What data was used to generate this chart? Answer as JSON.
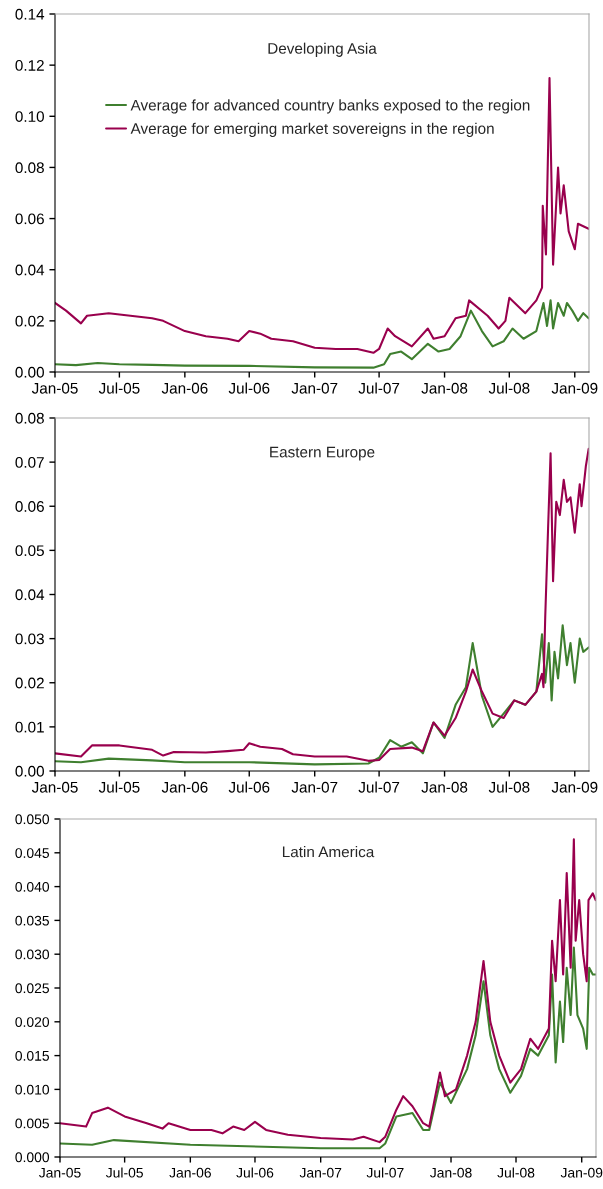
{
  "chart_data": [
    {
      "type": "line",
      "title": "Developing Asia",
      "legend": "top left",
      "grid": false,
      "xlim": [
        "2005-01-01",
        "2009-02-10"
      ],
      "xticks": [
        {
          "value": "2005-01-01",
          "label": "Jan-05"
        },
        {
          "value": "2005-07-01",
          "label": "Jul-05"
        },
        {
          "value": "2006-01-01",
          "label": "Jan-06"
        },
        {
          "value": "2006-07-01",
          "label": "Jul-06"
        },
        {
          "value": "2007-01-01",
          "label": "Jan-07"
        },
        {
          "value": "2007-07-01",
          "label": "Jul-07"
        },
        {
          "value": "2008-01-01",
          "label": "Jan-08"
        },
        {
          "value": "2008-07-01",
          "label": "Jul-08"
        },
        {
          "value": "2009-01-01",
          "label": "Jan-09"
        }
      ],
      "ylim": [
        0,
        0.14
      ],
      "yticks": [
        {
          "value": 0,
          "label": "0.00"
        },
        {
          "value": 0.02,
          "label": "0.02"
        },
        {
          "value": 0.04,
          "label": "0.04"
        },
        {
          "value": 0.06,
          "label": "0.06"
        },
        {
          "value": 0.08,
          "label": "0.08"
        },
        {
          "value": 0.1,
          "label": "0.10"
        },
        {
          "value": 0.12,
          "label": "0.12"
        },
        {
          "value": 0.14,
          "label": "0.14"
        }
      ],
      "series": [
        {
          "name": "Average for advanced country banks exposed to the region",
          "color": "#3f7f2f",
          "x": [
            "2005-01-01",
            "2005-03-01",
            "2005-05-01",
            "2005-07-01",
            "2005-10-01",
            "2006-01-01",
            "2006-07-01",
            "2007-01-01",
            "2007-06-15",
            "2007-07-15",
            "2007-08-01",
            "2007-09-01",
            "2007-10-01",
            "2007-11-15",
            "2007-12-15",
            "2008-01-15",
            "2008-02-15",
            "2008-03-15",
            "2008-04-15",
            "2008-05-15",
            "2008-06-15",
            "2008-07-10",
            "2008-08-10",
            "2008-09-15",
            "2008-10-05",
            "2008-10-15",
            "2008-10-25",
            "2008-11-01",
            "2008-11-15",
            "2008-12-01",
            "2008-12-10",
            "2008-12-25",
            "2009-01-10",
            "2009-01-25",
            "2009-02-09"
          ],
          "values": [
            0.003,
            0.0027,
            0.0035,
            0.003,
            0.0028,
            0.0025,
            0.0024,
            0.0018,
            0.0017,
            0.003,
            0.007,
            0.008,
            0.005,
            0.011,
            0.008,
            0.009,
            0.014,
            0.024,
            0.016,
            0.01,
            0.012,
            0.017,
            0.013,
            0.016,
            0.027,
            0.018,
            0.028,
            0.017,
            0.027,
            0.022,
            0.027,
            0.024,
            0.02,
            0.023,
            0.021
          ]
        },
        {
          "name": "Average for emerging market sovereigns in the region",
          "color": "#99004d",
          "x": [
            "2005-01-01",
            "2005-02-01",
            "2005-03-15",
            "2005-04-01",
            "2005-06-01",
            "2005-08-01",
            "2005-10-01",
            "2005-11-01",
            "2006-01-01",
            "2006-03-01",
            "2006-05-01",
            "2006-06-01",
            "2006-07-01",
            "2006-08-01",
            "2006-09-01",
            "2006-11-01",
            "2007-01-01",
            "2007-03-01",
            "2007-05-01",
            "2007-06-15",
            "2007-07-01",
            "2007-07-25",
            "2007-08-15",
            "2007-10-01",
            "2007-11-15",
            "2007-12-01",
            "2008-01-01",
            "2008-02-01",
            "2008-03-01",
            "2008-03-10",
            "2008-05-01",
            "2008-06-01",
            "2008-06-20",
            "2008-07-01",
            "2008-08-15",
            "2008-09-15",
            "2008-10-01",
            "2008-10-03",
            "2008-10-12",
            "2008-10-22",
            "2008-11-01",
            "2008-11-15",
            "2008-11-22",
            "2008-12-01",
            "2008-12-15",
            "2009-01-01",
            "2009-01-10",
            "2009-02-09"
          ],
          "values": [
            0.027,
            0.024,
            0.019,
            0.022,
            0.023,
            0.022,
            0.021,
            0.02,
            0.016,
            0.014,
            0.013,
            0.012,
            0.016,
            0.015,
            0.013,
            0.012,
            0.0095,
            0.009,
            0.009,
            0.0075,
            0.009,
            0.017,
            0.014,
            0.01,
            0.017,
            0.013,
            0.014,
            0.021,
            0.022,
            0.028,
            0.022,
            0.017,
            0.02,
            0.029,
            0.023,
            0.028,
            0.033,
            0.065,
            0.046,
            0.115,
            0.042,
            0.08,
            0.062,
            0.073,
            0.055,
            0.048,
            0.058,
            0.056
          ]
        }
      ]
    },
    {
      "type": "line",
      "title": "Eastern Europe",
      "grid": false,
      "xlim": [
        "2005-01-01",
        "2009-02-10"
      ],
      "xticks": [
        {
          "value": "2005-01-01",
          "label": "Jan-05"
        },
        {
          "value": "2005-07-01",
          "label": "Jul-05"
        },
        {
          "value": "2006-01-01",
          "label": "Jan-06"
        },
        {
          "value": "2006-07-01",
          "label": "Jul-06"
        },
        {
          "value": "2007-01-01",
          "label": "Jan-07"
        },
        {
          "value": "2007-07-01",
          "label": "Jul-07"
        },
        {
          "value": "2008-01-01",
          "label": "Jan-08"
        },
        {
          "value": "2008-07-01",
          "label": "Jul-08"
        },
        {
          "value": "2009-01-01",
          "label": "Jan-09"
        }
      ],
      "ylim": [
        0,
        0.08
      ],
      "yticks": [
        {
          "value": 0,
          "label": "0.00"
        },
        {
          "value": 0.01,
          "label": "0.01"
        },
        {
          "value": 0.02,
          "label": "0.02"
        },
        {
          "value": 0.03,
          "label": "0.03"
        },
        {
          "value": 0.04,
          "label": "0.04"
        },
        {
          "value": 0.05,
          "label": "0.05"
        },
        {
          "value": 0.06,
          "label": "0.06"
        },
        {
          "value": 0.07,
          "label": "0.07"
        },
        {
          "value": 0.08,
          "label": "0.08"
        }
      ],
      "series": [
        {
          "color": "#3f7f2f",
          "x": [
            "2005-01-01",
            "2005-03-15",
            "2005-06-01",
            "2005-10-01",
            "2006-01-01",
            "2006-07-01",
            "2007-01-01",
            "2007-06-01",
            "2007-07-01",
            "2007-08-01",
            "2007-09-01",
            "2007-10-01",
            "2007-11-01",
            "2007-12-01",
            "2008-01-01",
            "2008-02-01",
            "2008-03-01",
            "2008-03-20",
            "2008-04-15",
            "2008-05-15",
            "2008-06-15",
            "2008-07-15",
            "2008-08-15",
            "2008-09-15",
            "2008-10-01",
            "2008-10-10",
            "2008-10-20",
            "2008-10-28",
            "2008-11-05",
            "2008-11-15",
            "2008-11-28",
            "2008-12-10",
            "2008-12-20",
            "2009-01-01",
            "2009-01-15",
            "2009-01-25",
            "2009-02-09"
          ],
          "values": [
            0.0022,
            0.002,
            0.0028,
            0.0024,
            0.002,
            0.002,
            0.0015,
            0.0017,
            0.003,
            0.007,
            0.0055,
            0.0065,
            0.004,
            0.011,
            0.0075,
            0.015,
            0.019,
            0.029,
            0.017,
            0.01,
            0.013,
            0.016,
            0.015,
            0.018,
            0.031,
            0.02,
            0.029,
            0.016,
            0.027,
            0.021,
            0.033,
            0.024,
            0.029,
            0.02,
            0.03,
            0.027,
            0.028
          ]
        },
        {
          "color": "#99004d",
          "x": [
            "2005-01-01",
            "2005-03-15",
            "2005-04-15",
            "2005-07-01",
            "2005-10-01",
            "2005-11-01",
            "2005-12-01",
            "2006-03-01",
            "2006-05-01",
            "2006-06-15",
            "2006-07-01",
            "2006-08-01",
            "2006-10-01",
            "2006-11-01",
            "2007-01-01",
            "2007-04-01",
            "2007-06-01",
            "2007-07-01",
            "2007-08-01",
            "2007-10-01",
            "2007-11-01",
            "2007-12-01",
            "2008-01-01",
            "2008-02-01",
            "2008-03-01",
            "2008-03-20",
            "2008-04-15",
            "2008-05-15",
            "2008-06-15",
            "2008-07-15",
            "2008-08-15",
            "2008-09-15",
            "2008-10-01",
            "2008-10-05",
            "2008-10-10",
            "2008-10-18",
            "2008-10-25",
            "2008-11-01",
            "2008-11-10",
            "2008-11-20",
            "2008-12-01",
            "2008-12-10",
            "2008-12-20",
            "2009-01-01",
            "2009-01-15",
            "2009-01-20",
            "2009-02-01",
            "2009-02-09"
          ],
          "values": [
            0.004,
            0.0033,
            0.0058,
            0.0058,
            0.0048,
            0.0035,
            0.0043,
            0.0042,
            0.0045,
            0.0048,
            0.0063,
            0.0055,
            0.005,
            0.0038,
            0.0033,
            0.0033,
            0.0023,
            0.0025,
            0.005,
            0.0053,
            0.0045,
            0.011,
            0.008,
            0.012,
            0.018,
            0.023,
            0.018,
            0.013,
            0.012,
            0.016,
            0.015,
            0.018,
            0.022,
            0.019,
            0.035,
            0.055,
            0.072,
            0.043,
            0.061,
            0.058,
            0.066,
            0.061,
            0.062,
            0.054,
            0.065,
            0.06,
            0.069,
            0.073
          ]
        }
      ]
    },
    {
      "type": "line",
      "title": "Latin America",
      "grid": false,
      "xlim": [
        "2005-01-01",
        "2009-02-10"
      ],
      "xticks": [
        {
          "value": "2005-01-01",
          "label": "Jan-05"
        },
        {
          "value": "2005-07-01",
          "label": "Jul-05"
        },
        {
          "value": "2006-01-01",
          "label": "Jan-06"
        },
        {
          "value": "2006-07-01",
          "label": "Jul-06"
        },
        {
          "value": "2007-01-01",
          "label": "Jan-07"
        },
        {
          "value": "2007-07-01",
          "label": "Jul-07"
        },
        {
          "value": "2008-01-01",
          "label": "Jan-08"
        },
        {
          "value": "2008-07-01",
          "label": "Jul-08"
        },
        {
          "value": "2009-01-01",
          "label": "Jan-09"
        }
      ],
      "ylim": [
        0,
        0.05
      ],
      "yticks": [
        {
          "value": 0,
          "label": "0.000"
        },
        {
          "value": 0.005,
          "label": "0.005"
        },
        {
          "value": 0.01,
          "label": "0.010"
        },
        {
          "value": 0.015,
          "label": "0.015"
        },
        {
          "value": 0.02,
          "label": "0.020"
        },
        {
          "value": 0.025,
          "label": "0.025"
        },
        {
          "value": 0.03,
          "label": "0.030"
        },
        {
          "value": 0.035,
          "label": "0.035"
        },
        {
          "value": 0.04,
          "label": "0.040"
        },
        {
          "value": 0.045,
          "label": "0.045"
        },
        {
          "value": 0.05,
          "label": "0.050"
        }
      ],
      "series": [
        {
          "color": "#3f7f2f",
          "x": [
            "2005-01-01",
            "2005-04-01",
            "2005-06-01",
            "2006-01-01",
            "2007-01-01",
            "2007-06-15",
            "2007-07-01",
            "2007-08-01",
            "2007-09-15",
            "2007-10-15",
            "2007-11-01",
            "2007-12-01",
            "2008-01-01",
            "2008-02-15",
            "2008-03-10",
            "2008-04-01",
            "2008-04-20",
            "2008-05-15",
            "2008-06-15",
            "2008-07-15",
            "2008-08-10",
            "2008-09-01",
            "2008-10-01",
            "2008-10-10",
            "2008-10-20",
            "2008-11-01",
            "2008-11-10",
            "2008-11-20",
            "2008-12-01",
            "2008-12-10",
            "2008-12-20",
            "2009-01-05",
            "2009-01-15",
            "2009-01-22",
            "2009-02-01",
            "2009-02-09"
          ],
          "values": [
            0.002,
            0.0018,
            0.0025,
            0.0018,
            0.0013,
            0.0013,
            0.002,
            0.006,
            0.0065,
            0.004,
            0.004,
            0.011,
            0.008,
            0.013,
            0.018,
            0.026,
            0.018,
            0.013,
            0.0095,
            0.012,
            0.016,
            0.015,
            0.018,
            0.027,
            0.014,
            0.023,
            0.017,
            0.028,
            0.021,
            0.031,
            0.021,
            0.019,
            0.016,
            0.028,
            0.027,
            0.027
          ]
        },
        {
          "color": "#99004d",
          "x": [
            "2005-01-01",
            "2005-03-15",
            "2005-04-01",
            "2005-05-15",
            "2005-07-01",
            "2005-09-01",
            "2005-10-15",
            "2005-11-01",
            "2006-01-01",
            "2006-03-01",
            "2006-04-01",
            "2006-05-01",
            "2006-06-01",
            "2006-07-01",
            "2006-08-01",
            "2006-10-01",
            "2007-01-01",
            "2007-04-01",
            "2007-05-01",
            "2007-06-15",
            "2007-07-01",
            "2007-08-01",
            "2007-08-20",
            "2007-09-15",
            "2007-10-15",
            "2007-11-01",
            "2007-12-01",
            "2007-12-15",
            "2008-01-15",
            "2008-02-15",
            "2008-03-10",
            "2008-04-01",
            "2008-04-20",
            "2008-05-15",
            "2008-06-15",
            "2008-07-15",
            "2008-08-10",
            "2008-09-01",
            "2008-10-01",
            "2008-10-10",
            "2008-10-20",
            "2008-11-01",
            "2008-11-10",
            "2008-11-20",
            "2008-12-01",
            "2008-12-10",
            "2008-12-15",
            "2008-12-25",
            "2009-01-05",
            "2009-01-15",
            "2009-01-20",
            "2009-02-01",
            "2009-02-09"
          ],
          "values": [
            0.005,
            0.0045,
            0.0065,
            0.0073,
            0.006,
            0.005,
            0.0042,
            0.005,
            0.004,
            0.004,
            0.0035,
            0.0045,
            0.004,
            0.0052,
            0.004,
            0.0033,
            0.0028,
            0.0026,
            0.003,
            0.0022,
            0.003,
            0.007,
            0.009,
            0.0075,
            0.005,
            0.0045,
            0.0125,
            0.009,
            0.01,
            0.015,
            0.02,
            0.029,
            0.02,
            0.015,
            0.011,
            0.013,
            0.0175,
            0.016,
            0.019,
            0.032,
            0.026,
            0.038,
            0.027,
            0.042,
            0.028,
            0.047,
            0.032,
            0.038,
            0.03,
            0.026,
            0.038,
            0.039,
            0.038
          ]
        }
      ]
    }
  ]
}
